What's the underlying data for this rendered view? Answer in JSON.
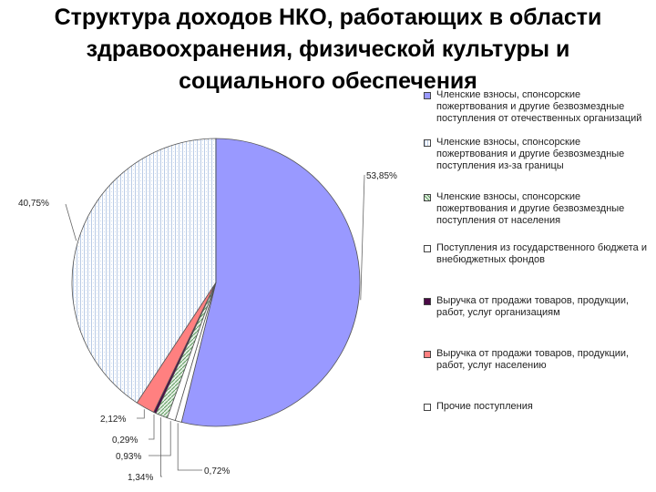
{
  "title_lines": [
    "Структура доходов НКО, работающих в области",
    "здравоохранения, физической культуры и",
    "социального обеспечения"
  ],
  "chart_data": {
    "type": "pie",
    "title": "Структура доходов НКО, работающих в области здравоохранения, физической культуры и социального обеспечения",
    "categories": [
      "Членские взносы, спонсорские пожертвования и другие безвозмездные поступления от отечественных организаций",
      "Членские взносы, спонсорские пожертвования и другие безвозмездные поступления из-за границы",
      "Членские взносы, спонсорские пожертвования и другие безвозмездные поступления от населения",
      "Поступления из государственного бюджета и внебюджетных фондов",
      "Выручка от продажи товаров, продукции, работ, услуг организациям",
      "Выручка от продажи товаров, продукции, работ, услуг населению",
      "Прочие поступления"
    ],
    "values": [
      53.85,
      40.75,
      1.34,
      0.93,
      0.29,
      2.12,
      0.72
    ],
    "labels": [
      "53,85%",
      "40,75%",
      "1,34%",
      "0,93%",
      "0,29%",
      "2,12%",
      "0,72%"
    ],
    "colors": [
      "#9999ff",
      "#dce6f2",
      "#cfe3cf",
      "#ffffff",
      "#4b0a46",
      "#ff8080",
      "#ffffff"
    ],
    "legend_position": "right"
  }
}
